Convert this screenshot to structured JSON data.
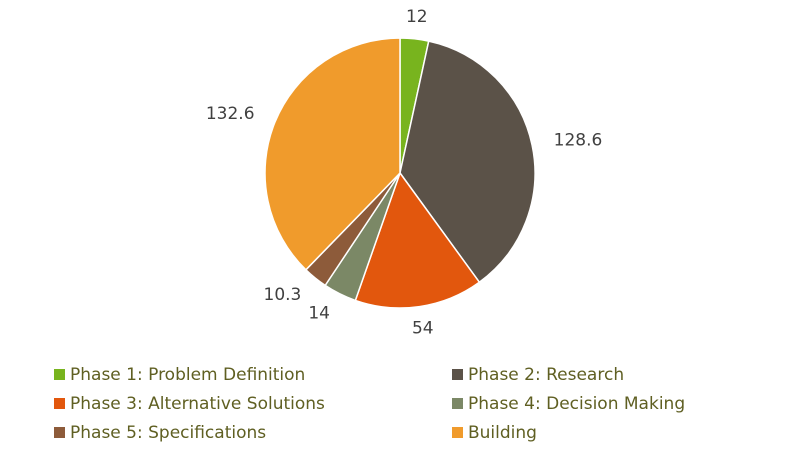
{
  "chart_data": {
    "type": "pie",
    "categories": [
      "Phase 1: Problem Definition",
      "Phase 2: Research",
      "Phase 3: Alternative Solutions",
      "Phase 4: Decision Making",
      "Phase 5: Specifications",
      "Building"
    ],
    "values": [
      12,
      128.6,
      54,
      14,
      10.3,
      132.6
    ],
    "colors": [
      "#78b41e",
      "#5b5248",
      "#e2570d",
      "#7b8866",
      "#8d5b3a",
      "#f09b2c"
    ]
  }
}
